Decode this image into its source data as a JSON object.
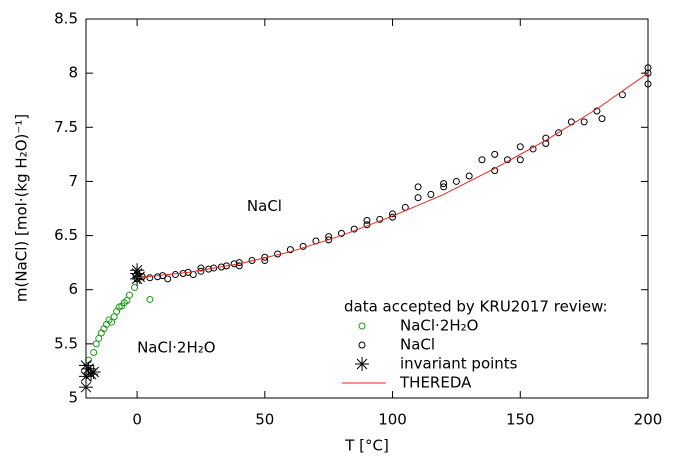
{
  "chart_data": {
    "type": "scatter",
    "xlabel": "T [°C]",
    "ylabel": "m(NaCl) [mol·(kg H₂O)⁻¹]",
    "xlim": [
      -20,
      200
    ],
    "xticks": [
      0,
      50,
      100,
      150,
      200
    ],
    "ylim": [
      5,
      8.5
    ],
    "yticks": [
      5,
      5.5,
      6,
      6.5,
      7,
      7.5,
      8,
      8.5
    ],
    "legend_title": "data accepted by KRU2017 review:",
    "legend": "lower right",
    "annotations": [
      {
        "text": "NaCl",
        "x": 43,
        "y": 6.77
      },
      {
        "text": "NaCl·2H₂O",
        "x": 0,
        "y": 5.46
      }
    ],
    "series": [
      {
        "name": "NaCl·2H₂O",
        "color": "#1a9a1a",
        "marker": "circle",
        "x": [
          -19,
          -17,
          -16,
          -15,
          -14,
          -13,
          -12,
          -11,
          -10,
          -9,
          -8,
          -7,
          -6,
          -5,
          -4,
          -3,
          -1,
          5
        ],
        "values": [
          5.35,
          5.42,
          5.5,
          5.55,
          5.6,
          5.64,
          5.68,
          5.72,
          5.7,
          5.75,
          5.8,
          5.84,
          5.85,
          5.88,
          5.9,
          5.95,
          6.02,
          5.91
        ]
      },
      {
        "name": "NaCl",
        "color": "#000000",
        "marker": "circle",
        "x": [
          0,
          2,
          5,
          8,
          10,
          12,
          15,
          18,
          20,
          22,
          25,
          25,
          28,
          30,
          33,
          35,
          38,
          40,
          40,
          45,
          50,
          50,
          55,
          60,
          65,
          70,
          75,
          75,
          80,
          85,
          90,
          90,
          95,
          100,
          100,
          105,
          110,
          110,
          115,
          120,
          120,
          125,
          130,
          135,
          140,
          140,
          145,
          150,
          150,
          155,
          160,
          160,
          165,
          170,
          175,
          180,
          182,
          190,
          200,
          200,
          200
        ],
        "values": [
          6.1,
          6.12,
          6.11,
          6.12,
          6.13,
          6.1,
          6.14,
          6.15,
          6.16,
          6.14,
          6.17,
          6.2,
          6.19,
          6.2,
          6.21,
          6.22,
          6.24,
          6.25,
          6.22,
          6.27,
          6.3,
          6.27,
          6.33,
          6.37,
          6.4,
          6.45,
          6.49,
          6.46,
          6.52,
          6.56,
          6.6,
          6.64,
          6.65,
          6.7,
          6.67,
          6.76,
          6.85,
          6.95,
          6.88,
          6.95,
          6.98,
          7.0,
          7.05,
          7.2,
          7.25,
          7.1,
          7.2,
          7.2,
          7.32,
          7.3,
          7.4,
          7.35,
          7.45,
          7.55,
          7.55,
          7.65,
          7.58,
          7.8,
          7.9,
          8.05,
          8.0
        ]
      },
      {
        "name": "invariant points",
        "color": "#000000",
        "marker": "asterisk",
        "x": [
          -20,
          -20,
          -20,
          -19,
          -18,
          -17,
          0,
          0,
          0,
          1
        ],
        "values": [
          5.1,
          5.2,
          5.3,
          5.27,
          5.22,
          5.24,
          6.1,
          6.15,
          6.18,
          6.12
        ]
      },
      {
        "name": "THEREDA",
        "color": "#e8281e",
        "marker": "line",
        "x": [
          0,
          20,
          40,
          60,
          80,
          100,
          120,
          140,
          160,
          180,
          200
        ],
        "values": [
          6.11,
          6.16,
          6.24,
          6.35,
          6.5,
          6.68,
          6.88,
          7.12,
          7.38,
          7.67,
          8.0
        ]
      }
    ]
  }
}
